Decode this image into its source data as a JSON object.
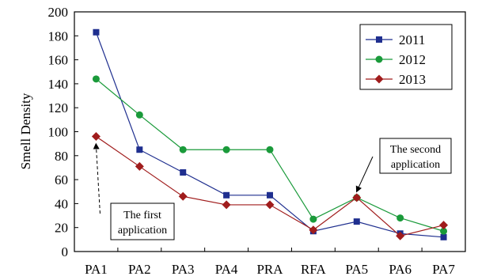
{
  "chart_data": {
    "type": "line",
    "title": "",
    "xlabel": "",
    "ylabel": "Smell Density",
    "categories": [
      "PA1",
      "PA2",
      "PA3",
      "PA4",
      "PRA",
      "RFA",
      "PA5",
      "PA6",
      "PA7"
    ],
    "ylim": [
      0,
      200
    ],
    "yticks": [
      0,
      20,
      40,
      60,
      80,
      100,
      120,
      140,
      160,
      180,
      200
    ],
    "grid": false,
    "legend_position": "top-right",
    "series": [
      {
        "name": "2011",
        "color": "#1f2f8f",
        "marker": "square",
        "values": [
          183,
          85,
          66,
          47,
          47,
          17,
          25,
          15,
          12
        ]
      },
      {
        "name": "2012",
        "color": "#1a9a3a",
        "marker": "circle",
        "values": [
          144,
          114,
          85,
          85,
          85,
          27,
          45,
          28,
          17
        ]
      },
      {
        "name": "2013",
        "color": "#a01c1c",
        "marker": "diamond",
        "values": [
          96,
          71,
          46,
          39,
          39,
          18,
          45,
          13,
          22
        ]
      }
    ],
    "annotations": [
      {
        "id": "first",
        "lines": [
          "The first",
          "application"
        ],
        "points_to": {
          "category": "PA1",
          "value": 96
        }
      },
      {
        "id": "second",
        "lines": [
          "The second",
          "application"
        ],
        "points_to": {
          "category": "PA5",
          "value": 45
        }
      }
    ]
  }
}
